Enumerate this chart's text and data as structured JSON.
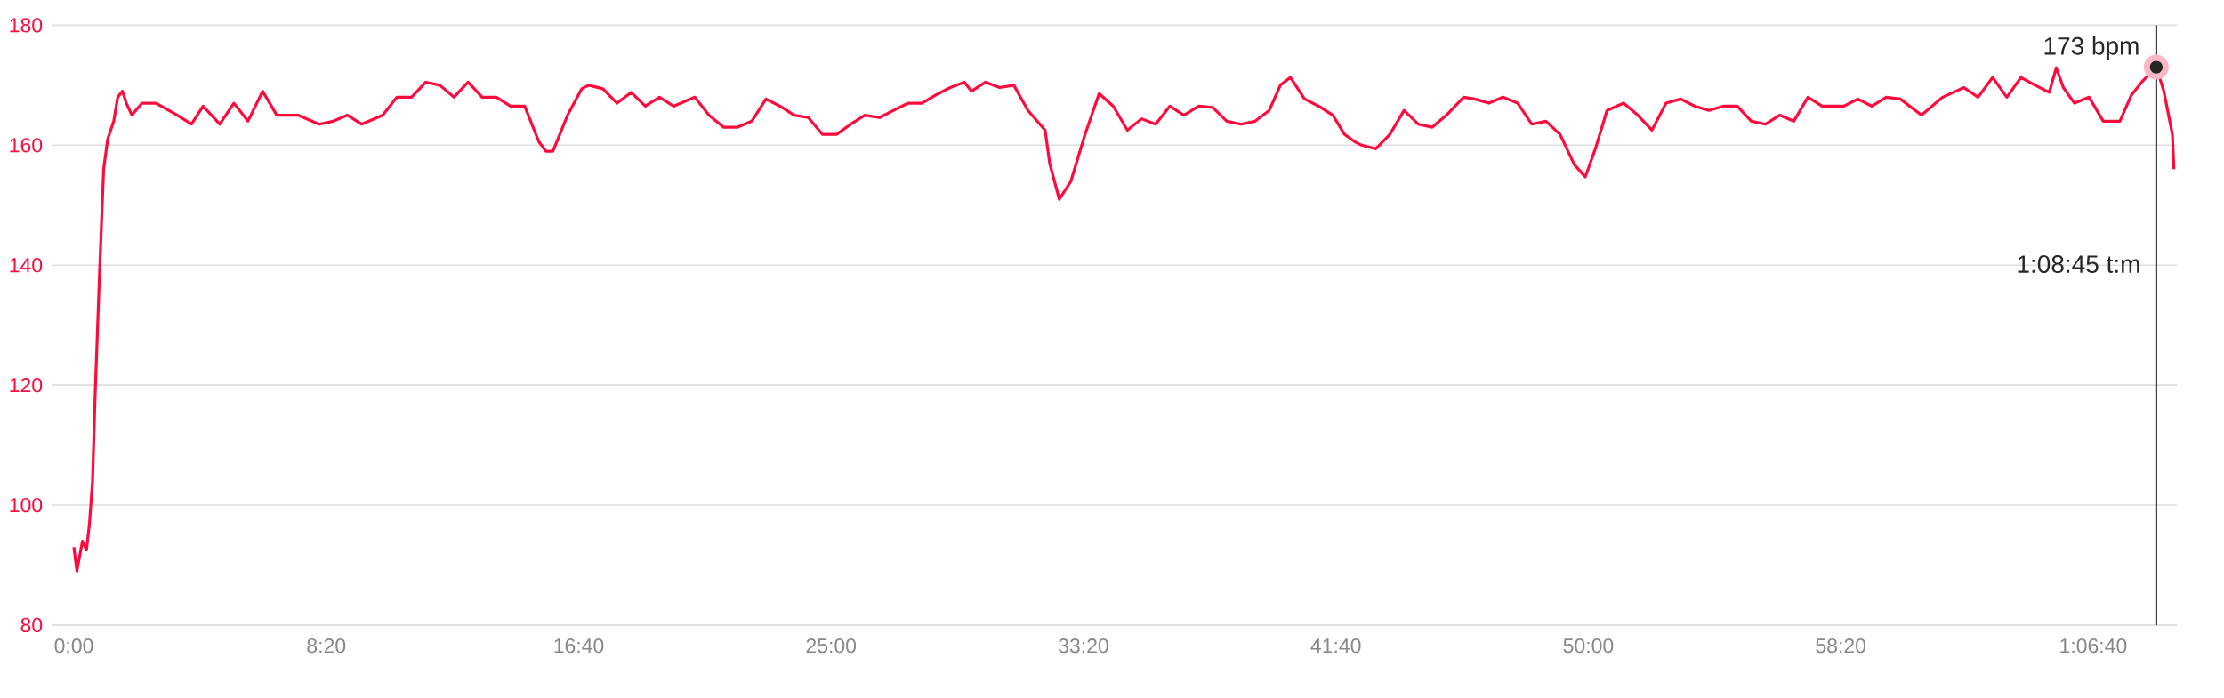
{
  "chart_data": {
    "type": "line",
    "color": "#ff0a3c",
    "grid": "y",
    "marker": "none",
    "line_style": "solid",
    "x": [
      0,
      6,
      17,
      25,
      31,
      37,
      42,
      51,
      59,
      67,
      79,
      87,
      96,
      104,
      115,
      135,
      163,
      205,
      233,
      256,
      289,
      317,
      345,
      374,
      402,
      444,
      486,
      514,
      542,
      570,
      612,
      640,
      669,
      697,
      725,
      753,
      781,
      809,
      837,
      865,
      893,
      921,
      935,
      949,
      978,
      1006,
      1020,
      1048,
      1076,
      1104,
      1132,
      1160,
      1188,
      1230,
      1258,
      1287,
      1315,
      1343,
      1371,
      1399,
      1427,
      1455,
      1483,
      1511,
      1539,
      1567,
      1596,
      1624,
      1652,
      1680,
      1708,
      1736,
      1764,
      1778,
      1806,
      1834,
      1862,
      1890,
      1924,
      1933,
      1952,
      1975,
      2003,
      2031,
      2059,
      2087,
      2115,
      2143,
      2171,
      2199,
      2228,
      2256,
      2284,
      2312,
      2340,
      2368,
      2390,
      2410,
      2438,
      2466,
      2494,
      2517,
      2537,
      2551,
      2579,
      2607,
      2635,
      2663,
      2691,
      2719,
      2753,
      2775,
      2803,
      2831,
      2860,
      2888,
      2916,
      2944,
      2972,
      2994,
      3014,
      3037,
      3070,
      3098,
      3126,
      3154,
      3183,
      3211,
      3239,
      3267,
      3295,
      3323,
      3351,
      3379,
      3407,
      3435,
      3463,
      3506,
      3534,
      3562,
      3590,
      3618,
      3660,
      3702,
      3744,
      3772,
      3801,
      3829,
      3857,
      3885,
      3913,
      3927,
      3941,
      3963,
      3992,
      4020,
      4053,
      4076,
      4096,
      4125,
      4140,
      4157,
      4160
    ],
    "values": [
      93,
      89,
      94,
      92.5,
      97,
      104,
      118,
      139,
      156,
      161,
      164,
      168,
      169,
      167,
      165,
      167,
      167,
      165,
      163.5,
      166.5,
      163.5,
      167,
      164,
      169,
      165,
      165,
      163.5,
      164,
      165,
      163.5,
      165,
      168,
      168,
      170.5,
      170,
      168,
      170.5,
      168,
      168,
      166.5,
      166.5,
      160.6,
      159,
      159,
      165,
      169.4,
      170,
      169.4,
      167,
      168.8,
      166.5,
      168,
      166.5,
      168,
      165,
      163,
      163,
      164,
      167.7,
      166.5,
      165,
      164.6,
      161.8,
      161.8,
      163.5,
      165,
      164.6,
      165.8,
      167,
      167,
      168.4,
      169.6,
      170.5,
      169,
      170.5,
      169.6,
      170,
      165.8,
      162.5,
      157,
      151,
      154,
      161.8,
      168.6,
      166.5,
      162.5,
      164.4,
      163.5,
      166.5,
      165,
      166.5,
      166.3,
      164,
      163.5,
      164,
      165.8,
      170,
      171.3,
      167.7,
      166.5,
      165,
      161.8,
      160.6,
      160,
      159.4,
      161.8,
      165.8,
      163.5,
      163,
      165,
      168,
      167.7,
      167,
      168,
      167,
      163.5,
      164,
      161.8,
      156.8,
      154.7,
      159.4,
      165.8,
      167,
      165,
      162.5,
      167,
      167.7,
      166.5,
      165.8,
      166.5,
      166.5,
      164,
      163.5,
      165,
      164,
      168,
      166.5,
      166.5,
      167.7,
      166.5,
      168,
      167.7,
      165,
      168,
      169.6,
      168,
      171.3,
      168,
      171.3,
      170,
      168.8,
      172.9,
      169.6,
      167,
      168,
      164,
      164,
      168.4,
      170.5,
      173,
      169,
      161.8,
      156
    ],
    "xlim": [
      -42,
      4166
    ],
    "ylim": [
      80,
      180
    ],
    "xticks": [
      {
        "value": 0,
        "label": "0:00"
      },
      {
        "value": 500,
        "label": "8:20"
      },
      {
        "value": 1000,
        "label": "16:40"
      },
      {
        "value": 1500,
        "label": "25:00"
      },
      {
        "value": 2000,
        "label": "33:20"
      },
      {
        "value": 2500,
        "label": "41:40"
      },
      {
        "value": 3000,
        "label": "50:00"
      },
      {
        "value": 3500,
        "label": "58:20"
      },
      {
        "value": 4000,
        "label": "1:06:40"
      }
    ],
    "yticks": [
      80,
      100,
      120,
      140,
      160,
      180
    ],
    "ref_lines": [
      {
        "axis": "x",
        "value": 4125,
        "color": "#222222"
      }
    ],
    "annotations": [
      {
        "text": "173 bpm",
        "x": 4125,
        "y": 173
      },
      "1:08:45 t:m"
    ]
  }
}
